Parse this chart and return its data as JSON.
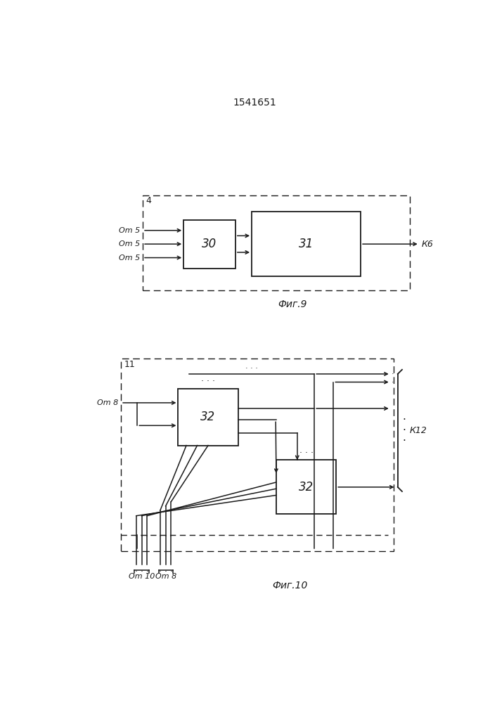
{
  "title": "1541651",
  "fig9_label": "4",
  "fig9_caption": "Фиг.9",
  "fig10_label": "11",
  "fig10_caption": "Фиг.10",
  "box30_label": "30",
  "box31_label": "31",
  "box32a_label": "32",
  "box32b_label": "32",
  "fig9_inputs": [
    "Оm 5",
    "Оm 5",
    "Оm 5"
  ],
  "fig9_output": "К6",
  "fig10_input": "Оm 8",
  "fig10_output": "К12",
  "fig10_bottom_labels": [
    "Оm 10",
    "Оm 8"
  ],
  "bg_color": "#ffffff",
  "line_color": "#1a1a1a",
  "font_size": 9,
  "title_font_size": 10
}
